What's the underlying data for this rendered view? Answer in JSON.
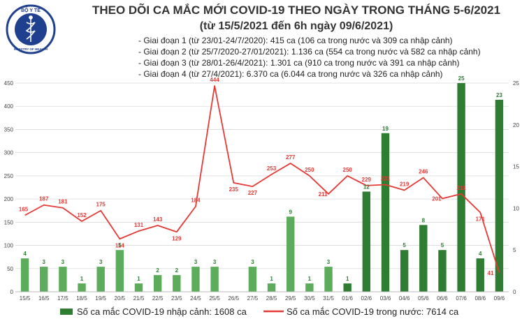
{
  "logo": {
    "top_text": "BỘ Y TẾ",
    "bottom_text": "MINISTRY OF HEALTH",
    "icon": "caduceus-icon"
  },
  "title": "THEO DÕI CA MẮC MỚI COVID-19 THEO NGÀY TRONG THÁNG 5-6/2021",
  "subtitle": "(từ 15/5/2021 đến 6h ngày 09/6/2021)",
  "phases": [
    "- Giai đoạn 1 (từ 23/01-24/7/2020): 415 ca (106 ca trong nước và 309 ca nhập cảnh)",
    "- Giai đoạn 2 (từ 25/7/2020-27/01/2021): 1.136 ca (554 ca trong nước và 582 ca nhập cảnh)",
    "- Giai đoạn 3 (từ 28/01-26/4/2021): 1.301 ca (910 ca trong nước và 391 ca nhập cảnh)",
    "- Giai đoạn 4 (từ 27/4/2021): 6.370 ca (6.044 ca trong nước và 326 ca nhập cảnh)"
  ],
  "colors": {
    "bar_light": "#5cac5c",
    "bar_dark": "#2e7d32",
    "line": "#e53935",
    "grid": "#d9d9d9",
    "title": "#333333"
  },
  "chart_data": {
    "type": "bar",
    "categories": [
      "15/5",
      "16/5",
      "17/5",
      "18/5",
      "19/5",
      "20/5",
      "21/5",
      "22/5",
      "23/5",
      "24/5",
      "25/5",
      "26/5",
      "27/5",
      "28/5",
      "29/5",
      "30/5",
      "31/5",
      "01/6",
      "02/6",
      "03/6",
      "04/6",
      "05/6",
      "06/6",
      "07/6",
      "08/6",
      "09/6"
    ],
    "series": [
      {
        "name": "Số ca mắc COVID-19 nhập cảnh: 1608 ca",
        "type": "bar",
        "axis": "right",
        "values": [
          4,
          3,
          3,
          1,
          3,
          5,
          1,
          2,
          2,
          3,
          3,
          null,
          3,
          1,
          9,
          1,
          3,
          1,
          12,
          19,
          5,
          8,
          5,
          25,
          4,
          23
        ]
      },
      {
        "name": "Số ca mắc COVID-19 trong nước: 7614 ca",
        "type": "line",
        "axis": "left",
        "values": [
          165,
          187,
          181,
          152,
          175,
          114,
          131,
          143,
          129,
          184,
          444,
          235,
          227,
          253,
          277,
          250,
          211,
          250,
          229,
          231,
          219,
          246,
          201,
          211,
          171,
          41
        ]
      }
    ],
    "bar_label_overrides": {
      "18": 12
    },
    "left_axis": {
      "ylim": [
        0,
        450
      ],
      "ticks": [
        0,
        50,
        100,
        150,
        200,
        250,
        300,
        350,
        400,
        450
      ]
    },
    "right_axis": {
      "ylim": [
        0,
        25
      ],
      "ticks": [
        0,
        5,
        10,
        15,
        20,
        25
      ]
    },
    "grid": true,
    "legend_position": "bottom"
  }
}
